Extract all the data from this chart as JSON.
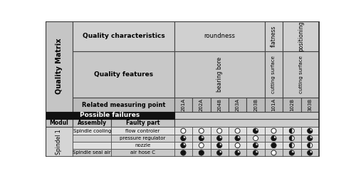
{
  "measuring_points": [
    "201A",
    "202A",
    "204B",
    "203A",
    "203B",
    "101A",
    "102B",
    "303B"
  ],
  "rows": [
    {
      "assembly": "Spindle cooling",
      "faulty_part": "flow controler",
      "circles": [
        0,
        0,
        0,
        0,
        2,
        0,
        1,
        2
      ]
    },
    {
      "assembly": "",
      "faulty_part": "pressure regulator",
      "circles": [
        2,
        2,
        2,
        2,
        0,
        2,
        1,
        2
      ]
    },
    {
      "assembly": "",
      "faulty_part": "nozzle",
      "circles": [
        2,
        0,
        2,
        0,
        2,
        3,
        1,
        1
      ]
    },
    {
      "assembly": "Spindle seal air",
      "faulty_part": "air hose C",
      "circles": [
        3,
        3,
        2,
        2,
        2,
        0,
        2,
        2
      ]
    }
  ],
  "figsize": [
    5.0,
    2.47
  ],
  "dpi": 100
}
